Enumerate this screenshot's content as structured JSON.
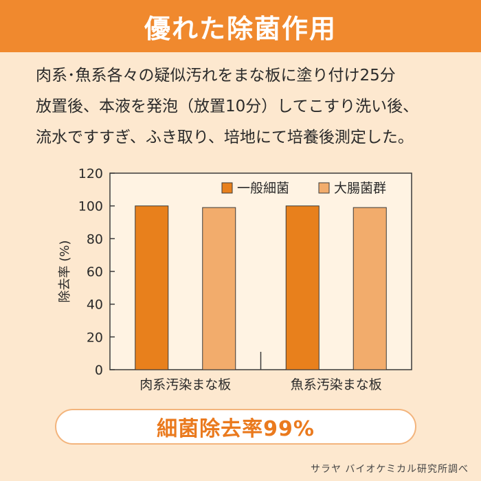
{
  "banner": {
    "title": "優れた除菌作用"
  },
  "description": [
    "肉系･魚系各々の疑似汚れをまな板に塗り付け25分",
    "放置後、本液を発泡（放置10分）してこすり洗い後、",
    "流水ですすぎ、ふき取り、培地にて培養後測定した。"
  ],
  "colors": {
    "banner": "#f0892e",
    "background": "#fde8cf",
    "plot_background": "#fff3e3",
    "series_1": "#e8801c",
    "series_2": "#f2ac6c",
    "summary_text": "#ea7a1e"
  },
  "chart_data": {
    "type": "bar",
    "categories": [
      "肉系汚染まな板",
      "魚系汚染まな板"
    ],
    "series": [
      {
        "name": "一般細菌",
        "values": [
          100,
          100
        ]
      },
      {
        "name": "大腸菌群",
        "values": [
          99,
          99
        ]
      }
    ],
    "xlabel": "",
    "ylabel": "除去率 (%)",
    "ylim": [
      0,
      120
    ],
    "yticks": [
      0,
      20,
      40,
      60,
      80,
      100,
      120
    ],
    "legend": "top-right",
    "grid": false
  },
  "summary": {
    "text": "細菌除去率99%"
  },
  "source": {
    "text": "サラヤ バイオケミカル研究所調べ"
  }
}
